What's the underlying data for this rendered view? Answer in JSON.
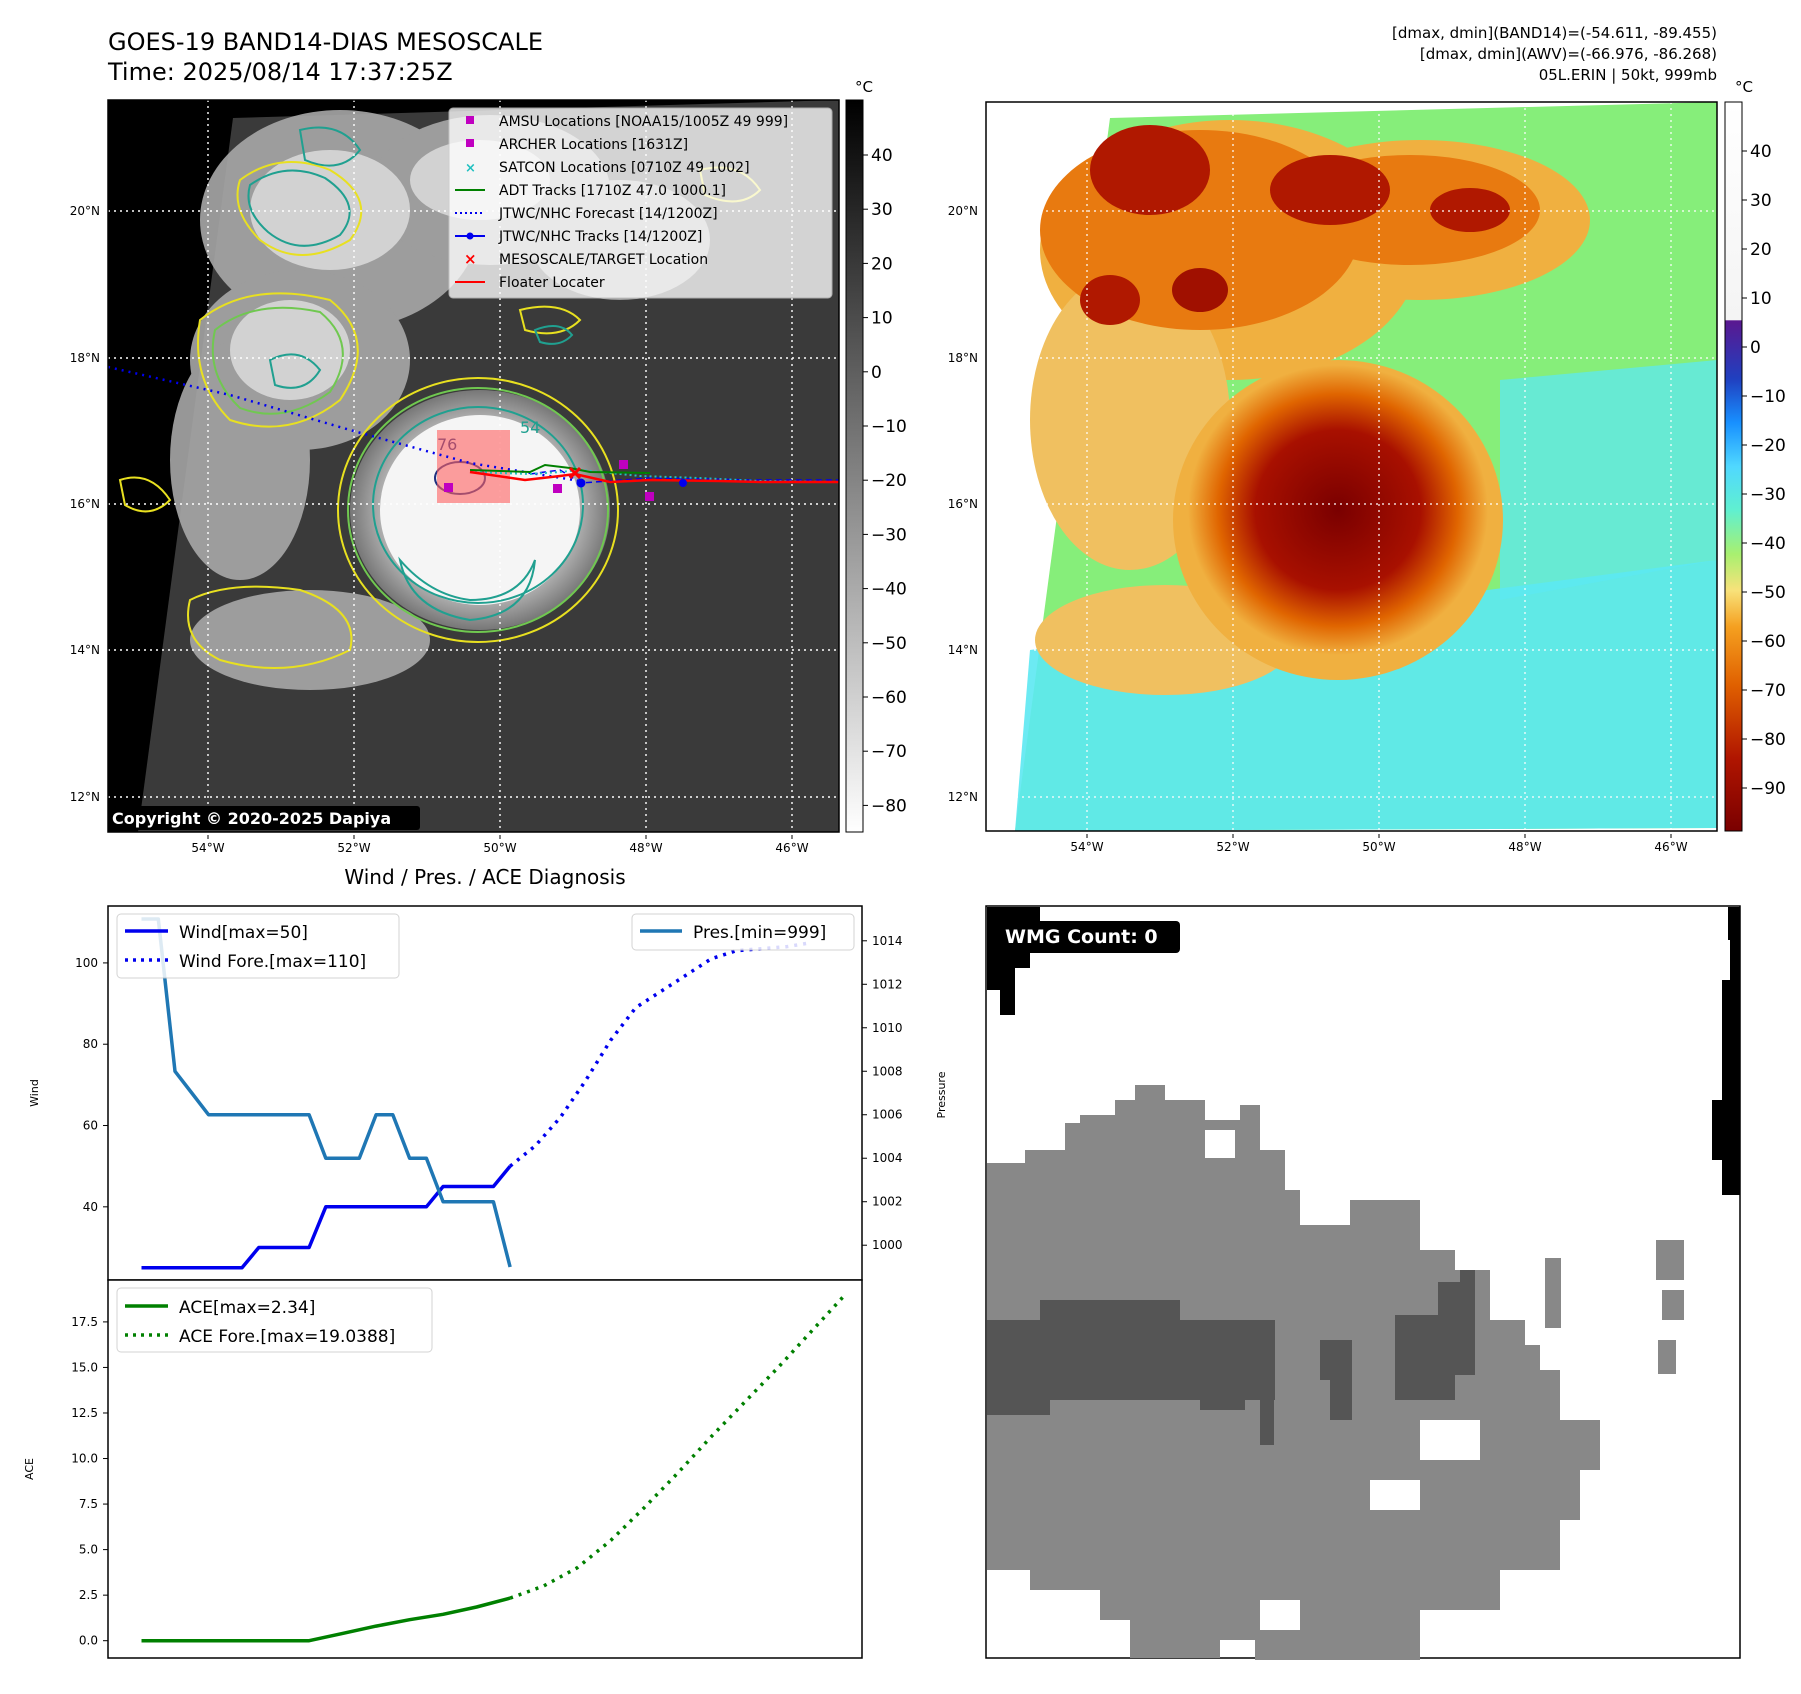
{
  "header": {
    "title_line1": "GOES-19 BAND14-DIAS MESOSCALE",
    "title_line2": "Time: 2025/08/14 17:37:25Z",
    "info_line1": "[dmax, dmin](BAND14)=(-54.611, -89.455)",
    "info_line2": "[dmax, dmin](AWV)=(-66.976, -86.268)",
    "info_line3": "05L.ERIN | 50kt, 999mb"
  },
  "unit_label": "°C",
  "copyright": "Copyright © 2020-2025 Dapiya",
  "map_axes": {
    "lon_ticks": [
      "54°W",
      "52°W",
      "50°W",
      "48°W",
      "46°W"
    ],
    "lat_ticks": [
      "20°N",
      "18°N",
      "16°N",
      "14°N",
      "12°N"
    ]
  },
  "gray_colorbar": {
    "ticks": [
      "40",
      "30",
      "20",
      "10",
      "0",
      "−10",
      "−20",
      "−30",
      "−40",
      "−50",
      "−60",
      "−70",
      "−80"
    ]
  },
  "color_colorbar": {
    "ticks": [
      "40",
      "30",
      "20",
      "10",
      "0",
      "−10",
      "−20",
      "−30",
      "−40",
      "−50",
      "−60",
      "−70",
      "−80",
      "−90"
    ]
  },
  "map_legend": [
    {
      "label": "AMSU Locations [NOAA15/1005Z 49 999]",
      "color": "#c000c0"
    },
    {
      "label": "ARCHER Locations [1631Z]",
      "color": "#c000c0"
    },
    {
      "label": "SATCON Locations [0710Z 49 1002]",
      "color": "#20c0c0"
    },
    {
      "label": "ADT Tracks [1710Z 47.0 1000.1]",
      "color": "#008000"
    },
    {
      "label": "JTWC/NHC Forecast [14/1200Z]",
      "color": "#0000ff"
    },
    {
      "label": "JTWC/NHC Tracks [14/1200Z]",
      "color": "#0000ff"
    },
    {
      "label": "MESOSCALE/TARGET Location",
      "color": "#ff0000"
    },
    {
      "label": "Floater Locater",
      "color": "#ff0000"
    }
  ],
  "contour_labels": [
    "76",
    "54"
  ],
  "wmg": {
    "label": "WMG Count: 0"
  },
  "chart_data": [
    {
      "type": "line",
      "title": "Wind / Pres. / ACE Diagnosis",
      "ylabel": "Wind",
      "y2label": "Pressure",
      "ylim": [
        22,
        114
      ],
      "y2lim": [
        998.4,
        1015.6
      ],
      "yticks": [
        40,
        60,
        80,
        100
      ],
      "y2ticks": [
        1000,
        1002,
        1004,
        1006,
        1008,
        1010,
        1012,
        1014
      ],
      "xlim": [
        0,
        45
      ],
      "legend_left": "upper left",
      "legend_right": "upper right",
      "series": [
        {
          "name": "Wind[max=50]",
          "axis": "left",
          "style": "solid",
          "color": "#0000ee",
          "x": [
            2,
            3,
            4,
            5,
            6,
            7,
            8,
            9,
            10,
            11,
            12,
            13,
            14,
            15,
            16,
            17,
            18,
            19,
            20,
            21,
            22,
            23,
            24
          ],
          "y": [
            25,
            25,
            25,
            25,
            25,
            25,
            25,
            30,
            30,
            30,
            30,
            40,
            40,
            40,
            40,
            40,
            40,
            40,
            45,
            45,
            45,
            45,
            50
          ]
        },
        {
          "name": "Wind Fore.[max=110]",
          "axis": "left",
          "style": "dotted",
          "color": "#0000ee",
          "x": [
            24,
            25.5,
            27,
            28.5,
            30,
            31.5,
            33,
            34.5,
            36,
            37.5,
            39,
            40.5,
            42
          ],
          "y": [
            50,
            55,
            62,
            71,
            81,
            89,
            93,
            97,
            101,
            103,
            103.5,
            104,
            105
          ]
        },
        {
          "name": "Pres.[min=999]",
          "axis": "right",
          "style": "solid",
          "color": "#1f77b4",
          "x": [
            2,
            3,
            4,
            5,
            6,
            7,
            8,
            9,
            10,
            11,
            12,
            13,
            14,
            15,
            16,
            17,
            18,
            19,
            20,
            21,
            22,
            23,
            24
          ],
          "y": [
            1015,
            1015,
            1008,
            1007,
            1006,
            1006,
            1006,
            1006,
            1006,
            1006,
            1006,
            1004,
            1004,
            1004,
            1006,
            1006,
            1004,
            1004,
            1002,
            1002,
            1002,
            1002,
            999
          ]
        }
      ]
    },
    {
      "type": "line",
      "ylabel": "ACE",
      "ylim": [
        -0.95,
        19.8
      ],
      "yticks": [
        0.0,
        2.5,
        5.0,
        7.5,
        10.0,
        12.5,
        15.0,
        17.5
      ],
      "ytick_labels": [
        "0.0",
        "2.5",
        "5.0",
        "7.5",
        "10.0",
        "12.5",
        "15.0",
        "17.5"
      ],
      "xlim": [
        0,
        45
      ],
      "legend": "upper left",
      "series": [
        {
          "name": "ACE[max=2.34]",
          "style": "solid",
          "color": "#008000",
          "x": [
            2,
            6,
            10,
            12,
            14,
            16,
            18,
            20,
            22,
            24
          ],
          "y": [
            0,
            0,
            0,
            0,
            0.4,
            0.8,
            1.15,
            1.45,
            1.85,
            2.34
          ]
        },
        {
          "name": "ACE Fore.[max=19.0388]",
          "style": "dotted",
          "color": "#008000",
          "x": [
            24,
            26,
            28,
            30,
            32,
            34,
            36,
            38,
            40,
            42,
            44
          ],
          "y": [
            2.34,
            3.0,
            4.0,
            5.5,
            7.3,
            9.2,
            11.2,
            13.1,
            15.0,
            17.0,
            19.0
          ]
        }
      ]
    }
  ]
}
